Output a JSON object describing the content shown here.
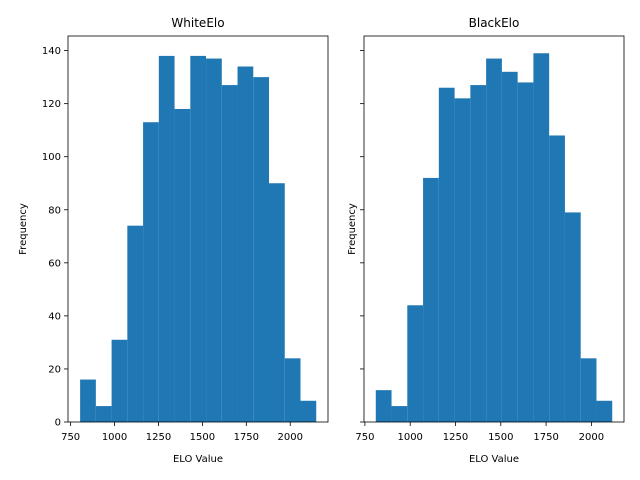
{
  "chart_data": [
    {
      "type": "bar",
      "title": "WhiteElo",
      "xlabel": "ELO Value",
      "ylabel": "Frequency",
      "color": "#1f77b4",
      "bin_edges": [
        804,
        893.6,
        983.2,
        1072.8,
        1162.4,
        1252,
        1341.6,
        1431.2,
        1520.8,
        1610.4,
        1700,
        1789.6,
        1879.2,
        1968.8,
        2058.4,
        2148
      ],
      "values": [
        16,
        6,
        31,
        74,
        113,
        138,
        118,
        138,
        137,
        127,
        134,
        130,
        90,
        24,
        8
      ],
      "xlim": [
        735,
        2215
      ],
      "ylim": [
        0,
        145.5
      ],
      "xticks": [
        750,
        1000,
        1250,
        1500,
        1750,
        2000
      ],
      "xtick_labels": [
        "750",
        "1000",
        "1250",
        "1500",
        "1750",
        "2000"
      ],
      "yticks": [
        0,
        20,
        40,
        60,
        80,
        100,
        120,
        140
      ],
      "ytick_labels": [
        "0",
        "20",
        "40",
        "60",
        "80",
        "100",
        "120",
        "140"
      ],
      "show_ytick_labels": true
    },
    {
      "type": "bar",
      "title": "BlackElo",
      "xlabel": "ELO Value",
      "ylabel": "Frequency",
      "color": "#1f77b4",
      "bin_edges": [
        810,
        897,
        984,
        1071,
        1158,
        1245,
        1332,
        1419,
        1506,
        1593,
        1680,
        1767,
        1854,
        1941,
        2028,
        2115
      ],
      "values": [
        12,
        6,
        44,
        92,
        126,
        122,
        127,
        137,
        132,
        128,
        139,
        108,
        79,
        24,
        8
      ],
      "xlim": [
        745,
        2180
      ],
      "ylim": [
        0,
        145.5
      ],
      "xticks": [
        750,
        1000,
        1250,
        1500,
        1750,
        2000
      ],
      "xtick_labels": [
        "750",
        "1000",
        "1250",
        "1500",
        "1750",
        "2000"
      ],
      "yticks": [
        0,
        20,
        40,
        60,
        80,
        100,
        120,
        140
      ],
      "ytick_labels": [
        "0",
        "20",
        "40",
        "60",
        "80",
        "100",
        "120",
        "140"
      ],
      "show_ytick_labels": false
    }
  ]
}
